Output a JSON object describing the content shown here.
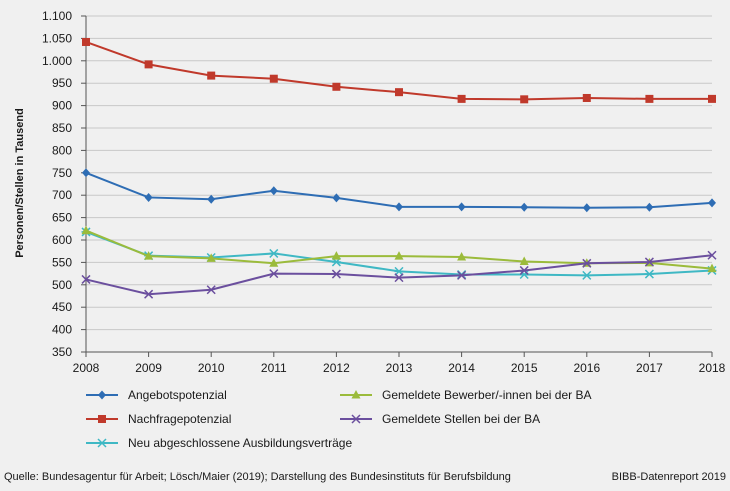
{
  "chart_data": {
    "type": "line",
    "title": "",
    "xlabel": "",
    "ylabel": "Personen/Stellen in Tausend",
    "ylim": [
      350,
      1100
    ],
    "y_ticks": [
      350,
      400,
      450,
      500,
      550,
      600,
      650,
      700,
      750,
      800,
      850,
      900,
      950,
      1000,
      1050,
      1100
    ],
    "y_tick_labels": [
      "350",
      "400",
      "450",
      "500",
      "550",
      "600",
      "650",
      "700",
      "750",
      "800",
      "850",
      "900",
      "950",
      "1.000",
      "1.050",
      "1.100"
    ],
    "categories": [
      "2008",
      "2009",
      "2010",
      "2011",
      "2012",
      "2013",
      "2014",
      "2015",
      "2016",
      "2017",
      "2018"
    ],
    "series": [
      {
        "name": "Angebotspotenzial",
        "color": "#2e6db4",
        "marker": "diamond",
        "values": [
          750,
          695,
          691,
          710,
          694,
          674,
          674,
          673,
          672,
          673,
          683
        ]
      },
      {
        "name": "Nachfragepotenzial",
        "color": "#c0392b",
        "marker": "square",
        "values": [
          1042,
          992,
          967,
          960,
          942,
          930,
          915,
          914,
          917,
          915,
          915
        ]
      },
      {
        "name": "Neu abgeschlossene Ausbildungsverträge",
        "color": "#3fb8c4",
        "marker": "star",
        "values": [
          618,
          565,
          561,
          570,
          551,
          530,
          523,
          523,
          521,
          524,
          532
        ]
      },
      {
        "name": "Gemeldete Bewerber/-innen bei der BA",
        "color": "#9bbb3b",
        "marker": "triangle",
        "values": [
          621,
          564,
          559,
          548,
          564,
          564,
          562,
          552,
          548,
          549,
          536
        ]
      },
      {
        "name": "Gemeldete Stellen bei der BA",
        "color": "#6b4f9e",
        "marker": "x",
        "values": [
          512,
          479,
          489,
          525,
          524,
          516,
          521,
          532,
          548,
          551,
          566
        ]
      }
    ]
  },
  "footer": {
    "source": "Quelle:  Bundesagentur für Arbeit; Lösch/Maier (2019); Darstellung des Bundesinstituts für Berufsbildung",
    "brand": "BIBB-Datenreport 2019"
  }
}
